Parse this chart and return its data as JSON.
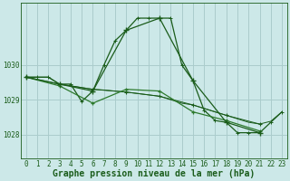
{
  "background_color": "#cce8e8",
  "plot_bg_color": "#cce8e8",
  "grid_color": "#aacccc",
  "line_color_dark": "#1a5c1a",
  "line_color_mid": "#2d7a2d",
  "xlabel": "Graphe pression niveau de la mer (hPa)",
  "xlabel_fontsize": 7,
  "tick_fontsize": 5.5,
  "ytick_labels": [
    1028,
    1029,
    1030
  ],
  "ylim": [
    1027.3,
    1031.8
  ],
  "xlim": [
    -0.5,
    23.5
  ],
  "series_main": {
    "x": [
      0,
      1,
      2,
      3,
      4,
      5,
      6,
      7,
      8,
      9,
      10,
      11,
      12,
      13,
      14,
      15,
      16,
      17,
      18,
      19,
      20,
      21,
      22,
      23
    ],
    "y": [
      1029.65,
      1029.65,
      1029.65,
      1029.45,
      1029.45,
      1028.95,
      1029.25,
      1030.0,
      1030.7,
      1031.0,
      1031.35,
      1031.35,
      1031.35,
      1031.35,
      1030.0,
      1029.55,
      1028.7,
      1028.4,
      1028.35,
      1028.05,
      1028.05,
      1028.05,
      1028.35,
      1028.65
    ]
  },
  "series_3h_main": {
    "x": [
      0,
      3,
      6,
      9,
      12,
      15,
      18,
      21
    ],
    "y": [
      1029.65,
      1029.45,
      1029.25,
      1031.0,
      1031.35,
      1029.55,
      1028.35,
      1028.05
    ]
  },
  "series_flat": {
    "x": [
      0,
      1,
      2,
      3,
      4,
      5,
      6,
      7,
      8,
      9,
      10,
      11,
      12,
      13,
      14,
      15,
      16,
      17,
      18,
      19,
      20,
      21,
      22,
      23
    ],
    "y": [
      1029.65,
      1029.65,
      1029.65,
      1029.45,
      1029.4,
      1029.35,
      1029.3,
      1029.28,
      1029.25,
      1029.22,
      1029.18,
      1029.14,
      1029.1,
      1029.0,
      1028.9,
      1028.85,
      1028.75,
      1028.65,
      1028.55,
      1028.45,
      1028.35,
      1028.3,
      1028.38,
      1028.65
    ]
  },
  "series_3h_flat": {
    "x": [
      0,
      3,
      6,
      9,
      12,
      15,
      18,
      21
    ],
    "y": [
      1029.65,
      1029.45,
      1029.3,
      1029.22,
      1029.1,
      1028.85,
      1028.55,
      1028.3
    ]
  },
  "series_mid": {
    "x": [
      0,
      3,
      6,
      9,
      12,
      15,
      18,
      21
    ],
    "y": [
      1029.65,
      1029.4,
      1028.9,
      1029.3,
      1029.25,
      1028.65,
      1028.4,
      1028.1
    ]
  }
}
